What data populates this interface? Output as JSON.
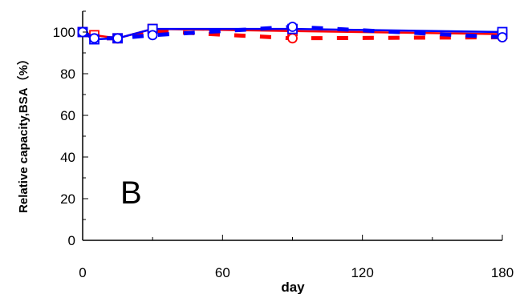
{
  "chart_data": {
    "type": "line",
    "panel_label": "B",
    "xlabel": "day",
    "ylabel": "Relative capacity,BSA（%）",
    "xlim": [
      0,
      180
    ],
    "ylim": [
      0,
      110
    ],
    "xticks": [
      0,
      60,
      120,
      180
    ],
    "yticks": [
      0,
      20,
      40,
      60,
      80,
      100
    ],
    "grid": false,
    "series": [
      {
        "name": "",
        "color": "#ff0000",
        "style": "solid",
        "marker": "square",
        "x": [
          0,
          5,
          15,
          30,
          90,
          180
        ],
        "y": [
          100,
          98.5,
          97,
          101.5,
          100.5,
          99
        ]
      },
      {
        "name": "",
        "color": "#ff0000",
        "style": "dashed",
        "marker": "circle",
        "x": [
          0,
          5,
          15,
          30,
          90,
          180
        ],
        "y": [
          100,
          97,
          97,
          100.5,
          97,
          97.5
        ]
      },
      {
        "name": "",
        "color": "#0000ff",
        "style": "solid",
        "marker": "square",
        "x": [
          0,
          5,
          15,
          30,
          90,
          180
        ],
        "y": [
          100,
          96.5,
          97,
          101.5,
          101.5,
          100
        ]
      },
      {
        "name": "",
        "color": "#0000ff",
        "style": "dashed",
        "marker": "circle",
        "x": [
          0,
          5,
          15,
          30,
          90,
          180
        ],
        "y": [
          100,
          97,
          97,
          98.5,
          102.5,
          97.5
        ]
      }
    ]
  }
}
